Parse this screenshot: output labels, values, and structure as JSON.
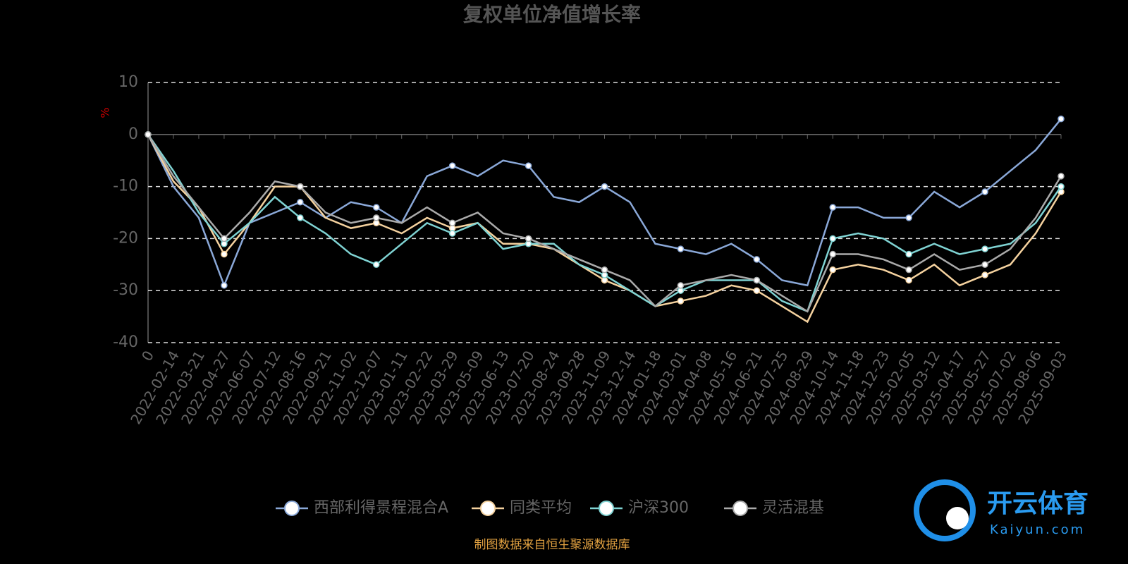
{
  "chart_data": {
    "type": "line",
    "title": "复权单位净值增长率",
    "y_label": "%",
    "categories": [
      "0",
      "2022-02-14",
      "2022-03-21",
      "2022-04-27",
      "2022-06-07",
      "2022-07-12",
      "2022-08-16",
      "2022-09-21",
      "2022-11-02",
      "2022-12-07",
      "2023-01-11",
      "2023-02-22",
      "2023-03-29",
      "2023-05-09",
      "2023-06-13",
      "2023-07-20",
      "2023-08-24",
      "2023-09-28",
      "2023-11-09",
      "2023-12-14",
      "2024-01-18",
      "2024-03-01",
      "2024-04-08",
      "2024-05-16",
      "2024-06-21",
      "2024-07-25",
      "2024-08-29",
      "2024-10-14",
      "2024-11-18",
      "2024-12-23",
      "2025-02-05",
      "2025-03-12",
      "2025-04-17",
      "2025-05-27",
      "2025-07-02",
      "2025-08-06",
      "2025-09-03"
    ],
    "series": [
      {
        "name": "西部利得景程混合A",
        "color": "#8aa8d8",
        "values": [
          0,
          -10,
          -16,
          -29,
          -17,
          -15,
          -13,
          -16,
          -13,
          -14,
          -17,
          -8,
          -6,
          -8,
          -5,
          -6,
          -12,
          -13,
          -10,
          -13,
          -21,
          -22,
          -23,
          -21,
          -24,
          -28,
          -29,
          -14,
          -14,
          -16,
          -16,
          -11,
          -14,
          -11,
          -7,
          -3,
          3
        ]
      },
      {
        "name": "同类平均",
        "color": "#f5d29f",
        "values": [
          0,
          -9,
          -14,
          -23,
          -17,
          -10,
          -10,
          -16,
          -18,
          -17,
          -19,
          -16,
          -18,
          -17,
          -21,
          -21,
          -22,
          -25,
          -28,
          -30,
          -33,
          -32,
          -31,
          -29,
          -30,
          -33,
          -36,
          -26,
          -25,
          -26,
          -28,
          -25,
          -29,
          -27,
          -25,
          -19,
          -11
        ]
      },
      {
        "name": "沪深300",
        "color": "#7fd3d3",
        "values": [
          0,
          -7,
          -15,
          -21,
          -17,
          -12,
          -16,
          -19,
          -23,
          -25,
          -21,
          -17,
          -19,
          -17,
          -22,
          -21,
          -21,
          -25,
          -27,
          -30,
          -33,
          -30,
          -28,
          -28,
          -28,
          -32,
          -34,
          -20,
          -19,
          -20,
          -23,
          -21,
          -23,
          -22,
          -21,
          -17,
          -10
        ]
      },
      {
        "name": "灵活混基",
        "color": "#aaaaaa",
        "values": [
          0,
          -8,
          -14,
          -20,
          -15,
          -9,
          -10,
          -15,
          -17,
          -16,
          -17,
          -14,
          -17,
          -15,
          -19,
          -20,
          -22,
          -24,
          -26,
          -28,
          -33,
          -29,
          -28,
          -27,
          -28,
          -31,
          -34,
          -23,
          -23,
          -24,
          -26,
          -23,
          -26,
          -25,
          -22,
          -16,
          -8
        ]
      }
    ],
    "ylim": [
      -40,
      10
    ],
    "yticks": [
      -40,
      -30,
      -20,
      -10,
      0,
      10
    ],
    "grid": true,
    "legend": "bottom",
    "source": "制图数据来自恒生聚源数据库"
  },
  "watermark": {
    "brand": "开云体育",
    "site": "Kaiyun.com"
  }
}
